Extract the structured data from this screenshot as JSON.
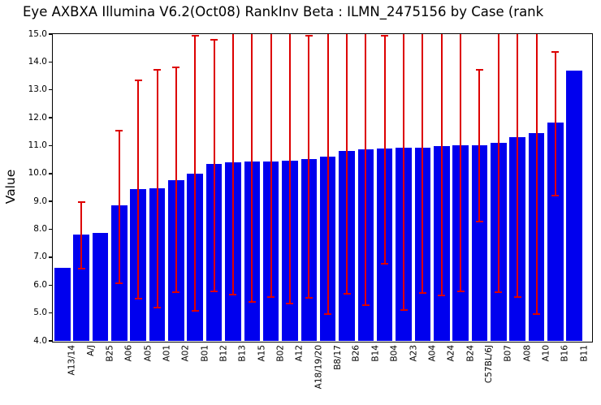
{
  "title": "Eye AXBXA Illumina V6.2(Oct08) RankInv Beta : ILMN_2475156 by Case (rank",
  "chart_data": {
    "type": "bar",
    "title": "Eye AXBXA Illumina V6.2(Oct08) RankInv Beta : ILMN_2475156 by Case (rank",
    "xlabel": "",
    "ylabel": "Value",
    "ylim": [
      4.0,
      15.0
    ],
    "ytick_step": 1.0,
    "grid": false,
    "legend": "none",
    "bar_color": "#0000ee",
    "error_bar_color": "#dd0000",
    "categories": [
      "A13/14",
      "A/J",
      "B25",
      "A06",
      "A05",
      "A01",
      "A02",
      "B01",
      "B12",
      "B13",
      "A15",
      "B02",
      "A12",
      "A18/19/20",
      "B8/17",
      "B26",
      "B14",
      "B04",
      "A23",
      "A04",
      "A24",
      "B24",
      "C57BL/6J",
      "B07",
      "A08",
      "A10",
      "B16",
      "B11"
    ],
    "values": [
      6.62,
      7.8,
      7.88,
      8.85,
      9.43,
      9.47,
      9.77,
      10.0,
      10.33,
      10.4,
      10.43,
      10.44,
      10.47,
      10.52,
      10.62,
      10.8,
      10.86,
      10.89,
      10.93,
      10.93,
      10.97,
      11.02,
      11.02,
      11.09,
      11.3,
      11.45,
      11.82,
      13.68
    ],
    "error_low": [
      null,
      6.58,
      null,
      6.07,
      5.5,
      5.2,
      5.76,
      5.07,
      5.78,
      5.65,
      5.39,
      5.56,
      5.35,
      5.55,
      4.97,
      5.7,
      5.29,
      6.76,
      5.12,
      5.73,
      5.62,
      5.77,
      8.28,
      5.75,
      5.57,
      4.97,
      9.22,
      null
    ],
    "error_high": [
      null,
      8.97,
      null,
      11.53,
      13.35,
      13.72,
      13.82,
      14.95,
      14.8,
      15.0,
      15.0,
      15.0,
      15.0,
      14.95,
      15.0,
      15.0,
      15.0,
      14.95,
      15.0,
      15.0,
      15.0,
      15.0,
      13.72,
      15.0,
      15.0,
      15.0,
      14.35,
      null
    ],
    "note_clipped_whiskers": "error_high values of 15.0 reach the top frame with no cap (clipped)"
  }
}
